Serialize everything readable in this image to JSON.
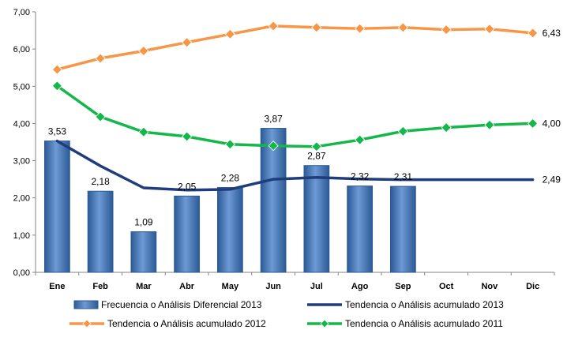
{
  "chart_data": {
    "type": "bar",
    "categories": [
      "Ene",
      "Feb",
      "Mar",
      "Abr",
      "May",
      "Jun",
      "Jul",
      "Ago",
      "Sep",
      "Oct",
      "Nov",
      "Dic"
    ],
    "ylim": [
      0,
      7
    ],
    "yticks": [
      "0,00",
      "1,00",
      "2,00",
      "3,00",
      "4,00",
      "5,00",
      "6,00",
      "7,00"
    ],
    "grid": false,
    "legend_position": "bottom",
    "series": [
      {
        "name": "Frecuencia o Análisis Diferencial 2013",
        "type": "bar",
        "color": "#4f81bd",
        "values": [
          3.53,
          2.18,
          1.09,
          2.05,
          2.28,
          3.87,
          2.87,
          2.32,
          2.31,
          null,
          null,
          null
        ],
        "labels": [
          "3,53",
          "2,18",
          "1,09",
          "2,05",
          "2,28",
          "3,87",
          "2,87",
          "2,32",
          "2,31",
          "",
          "",
          ""
        ]
      },
      {
        "name": "Tendencia o Análisis acumulado 2013",
        "type": "line",
        "color": "#1f3d7a",
        "marker": "none",
        "values": [
          3.53,
          2.86,
          2.27,
          2.21,
          2.23,
          2.5,
          2.55,
          2.51,
          2.49,
          2.49,
          2.49,
          2.49
        ],
        "end_label": "2,49"
      },
      {
        "name": "Tendencia o Análisis acumulado 2012",
        "type": "line",
        "color": "#f79646",
        "marker": "diamond",
        "values": [
          5.45,
          5.75,
          5.95,
          6.18,
          6.4,
          6.62,
          6.58,
          6.55,
          6.58,
          6.52,
          6.54,
          6.43
        ],
        "end_label": "6,43"
      },
      {
        "name": "Tendencia o Análisis acumulado 2011",
        "type": "line",
        "color": "#14b84a",
        "marker": "diamond",
        "values": [
          5.01,
          4.18,
          3.77,
          3.65,
          3.44,
          3.4,
          3.38,
          3.56,
          3.79,
          3.89,
          3.96,
          4.0
        ],
        "end_label": "4,00"
      }
    ]
  }
}
